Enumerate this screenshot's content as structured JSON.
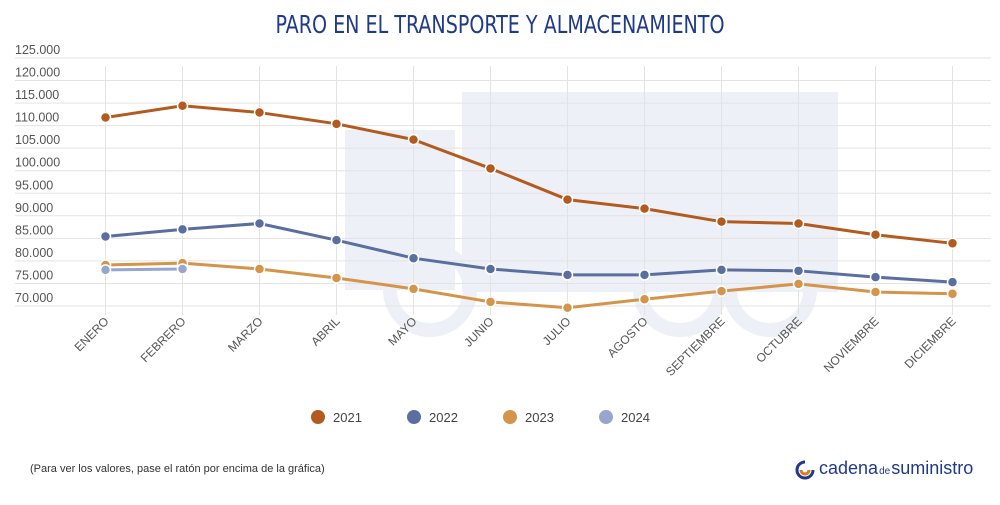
{
  "chart_data": {
    "type": "line",
    "title": "PARO EN EL TRANSPORTE Y ALMACENAMIENTO",
    "categories": [
      "ENERO",
      "FEBRERO",
      "MARZO",
      "ABRIL",
      "MAYO",
      "JUNIO",
      "JULIO",
      "AGOSTO",
      "SEPTIEMBRE",
      "OCTUBRE",
      "NOVIEMBRE",
      "DICIEMBRE"
    ],
    "series": [
      {
        "name": "2021",
        "color": "#b35a1f",
        "values": [
          111800,
          114400,
          112900,
          110400,
          106900,
          100500,
          93600,
          91600,
          88700,
          88300,
          85800,
          83900
        ]
      },
      {
        "name": "2022",
        "color": "#5a6fa0",
        "values": [
          85400,
          87000,
          88300,
          84600,
          80600,
          78200,
          76900,
          76900,
          78000,
          77800,
          76400,
          75300
        ]
      },
      {
        "name": "2023",
        "color": "#d4944a",
        "values": [
          79100,
          79500,
          78200,
          76200,
          73800,
          70900,
          69600,
          71500,
          73300,
          74900,
          73100,
          72700
        ]
      },
      {
        "name": "2024",
        "color": "#97a6cf",
        "values": [
          78000,
          78200,
          null,
          null,
          null,
          null,
          null,
          null,
          null,
          null,
          null,
          null
        ]
      }
    ],
    "ylim": [
      68000,
      125000
    ],
    "yticks": [
      {
        "value": 70000,
        "label": "70.000"
      },
      {
        "value": 75000,
        "label": "75.000"
      },
      {
        "value": 80000,
        "label": "80.000"
      },
      {
        "value": 85000,
        "label": "85.000"
      },
      {
        "value": 90000,
        "label": "90.000"
      },
      {
        "value": 95000,
        "label": "95.000"
      },
      {
        "value": 100000,
        "label": "100.000"
      },
      {
        "value": 105000,
        "label": "105.000"
      },
      {
        "value": 110000,
        "label": "110.000"
      },
      {
        "value": 115000,
        "label": "115.000"
      },
      {
        "value": 120000,
        "label": "120.000"
      },
      {
        "value": 125000,
        "label": "125.000"
      }
    ],
    "grid": true,
    "legend": "bottom",
    "note": "(Para ver los valores, pase el ratón por encima de la gráfica)",
    "brand": {
      "part1": "cadena",
      "part2": "de",
      "part3": "suministro"
    }
  }
}
